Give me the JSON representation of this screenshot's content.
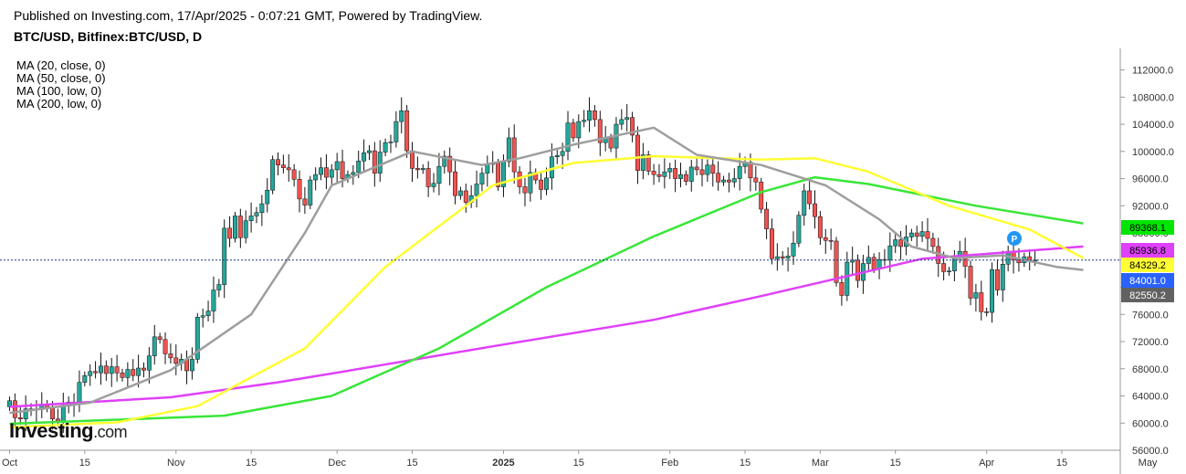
{
  "header": {
    "published": "Published on Investing.com, 17/Apr/2025 - 0:07:21 GMT, Powered by TradingView.",
    "symbol": "BTC/USD, Bitfinex:BTC/USD, D"
  },
  "legend": [
    "MA (20, close, 0)",
    "MA (50, close, 0)",
    "MA (100, low, 0)",
    "MA (200, low, 0)"
  ],
  "watermark": {
    "brand": "Investing",
    "suffix": ".com"
  },
  "colors": {
    "up": "#26a69a",
    "down": "#ef5350",
    "ma20": "#9e9e9e",
    "ma50": "#ffff33",
    "ma100": "#39e639",
    "ma200": "#e040fb",
    "current_line": "#1e3a8a"
  },
  "marker_label": "P",
  "chart_data": {
    "type": "candlestick",
    "title": "BTC/USD, Bitfinex:BTC/USD, D",
    "x_ticks": [
      "Oct",
      "15",
      "Nov",
      "15",
      "Dec",
      "15",
      "2025",
      "15",
      "Feb",
      "15",
      "Mar",
      "15",
      "Apr",
      "15",
      "May"
    ],
    "y_ticks": [
      "60000.0",
      "64000.0",
      "68000.0",
      "72000.0",
      "76000.0",
      "80000.0",
      "84000.0",
      "88000.0",
      "92000.0",
      "96000.0",
      "100000.0",
      "104000.0",
      "108000.0",
      "112000.0"
    ],
    "y_tick_values": [
      60000,
      64000,
      68000,
      72000,
      76000,
      80000,
      84000,
      88000,
      92000,
      96000,
      100000,
      104000,
      108000,
      112000
    ],
    "y_bottom_partial_label": "56000.0",
    "ylim": [
      56000,
      114500
    ],
    "start_date": "2024-10-01",
    "price_labels": [
      {
        "value": "89368.1",
        "label_value": 89368.1,
        "color": "#00e600",
        "series": "MA (100, low, 0)"
      },
      {
        "value": "85936.8",
        "label_value": 85936.8,
        "color": "#e040fb",
        "series": "MA (200, low, 0)"
      },
      {
        "value": "84329.2",
        "label_value": 84329.2,
        "color": "#ffff33",
        "series": "MA (50, close, 0)"
      },
      {
        "value": "84001.0",
        "label_value": 84001.0,
        "color": "#2962ff",
        "series": "Last price"
      },
      {
        "value": "82550.2",
        "label_value": 82550.2,
        "color": "#616161",
        "series": "MA (20, close, 0)"
      }
    ],
    "closes": [
      63300,
      60800,
      60600,
      62100,
      62100,
      62000,
      62800,
      62200,
      60600,
      60300,
      62500,
      63100,
      62900,
      66000,
      67000,
      67600,
      67400,
      68400,
      67300,
      68300,
      67400,
      66700,
      67900,
      67000,
      68100,
      67800,
      69900,
      72700,
      72300,
      70200,
      69600,
      68800,
      69400,
      67700,
      69400,
      75600,
      75800,
      76500,
      79600,
      80400,
      88700,
      87200,
      90500,
      87300,
      89800,
      90500,
      91000,
      92300,
      94300,
      98800,
      98000,
      97600,
      97300,
      95900,
      93000,
      92100,
      95800,
      96600,
      97600,
      96200,
      97300,
      98500,
      96000,
      96600,
      96900,
      98600,
      99800,
      100100,
      96800,
      99900,
      101300,
      101400,
      104400,
      106000,
      100100,
      97500,
      97300,
      97500,
      94800,
      95300,
      97800,
      99300,
      97000,
      93500,
      94200,
      92500,
      93500,
      95200,
      96800,
      98100,
      98300,
      94800,
      98500,
      102000,
      97000,
      94800,
      93900,
      96900,
      95800,
      94400,
      96100,
      99200,
      99400,
      100000,
      104200,
      102000,
      104400,
      104600,
      106000,
      104700,
      101300,
      102000,
      100500,
      104000,
      104700,
      105000,
      102400,
      97200,
      99500,
      97100,
      96600,
      96300,
      97000,
      97500,
      96000,
      96600,
      95600,
      97700,
      97300,
      96600,
      98000,
      96800,
      95500,
      95800,
      95500,
      96000,
      97800,
      98400,
      96100,
      95500,
      91500,
      88600,
      84200,
      84500,
      84300,
      84600,
      86500,
      90600,
      94200,
      92300,
      90400,
      87300,
      86900,
      86800,
      80700,
      78800,
      83700,
      84000,
      81000,
      83500,
      84400,
      82700,
      84100,
      84000,
      86100,
      87000,
      86000,
      87400,
      88000,
      87500,
      88200,
      87200,
      86000,
      83500,
      82300,
      82400,
      84400,
      85300,
      83100,
      78400,
      79200,
      76400,
      76300,
      82600,
      79600,
      83400,
      85300,
      84000,
      83600,
      84500,
      84000,
      84001
    ],
    "ma200_points": [
      [
        0,
        62400
      ],
      [
        30,
        63800
      ],
      [
        50,
        66000
      ],
      [
        60,
        67300
      ],
      [
        90,
        71300
      ],
      [
        120,
        75200
      ],
      [
        140,
        78700
      ],
      [
        170,
        84200
      ],
      [
        200,
        86000
      ]
    ],
    "ma100_points": [
      [
        0,
        59900
      ],
      [
        40,
        61100
      ],
      [
        60,
        64000
      ],
      [
        80,
        71000
      ],
      [
        100,
        80000
      ],
      [
        120,
        87500
      ],
      [
        140,
        94000
      ],
      [
        150,
        96200
      ],
      [
        160,
        95200
      ],
      [
        180,
        92000
      ],
      [
        200,
        89400
      ]
    ],
    "ma50_points": [
      [
        0,
        59400
      ],
      [
        20,
        60100
      ],
      [
        35,
        62500
      ],
      [
        55,
        71000
      ],
      [
        70,
        83000
      ],
      [
        90,
        95000
      ],
      [
        105,
        98300
      ],
      [
        120,
        99300
      ],
      [
        140,
        98800
      ],
      [
        150,
        99000
      ],
      [
        160,
        97000
      ],
      [
        175,
        92000
      ],
      [
        190,
        88500
      ],
      [
        200,
        84300
      ]
    ],
    "ma20_points": [
      [
        0,
        61500
      ],
      [
        15,
        63000
      ],
      [
        30,
        67800
      ],
      [
        45,
        76000
      ],
      [
        55,
        88000
      ],
      [
        60,
        95000
      ],
      [
        75,
        100000
      ],
      [
        88,
        98000
      ],
      [
        95,
        99000
      ],
      [
        105,
        101000
      ],
      [
        120,
        103500
      ],
      [
        128,
        99500
      ],
      [
        140,
        98000
      ],
      [
        152,
        95000
      ],
      [
        162,
        90000
      ],
      [
        168,
        86000
      ],
      [
        176,
        84300
      ],
      [
        185,
        84700
      ],
      [
        195,
        83000
      ],
      [
        200,
        82550
      ]
    ]
  }
}
